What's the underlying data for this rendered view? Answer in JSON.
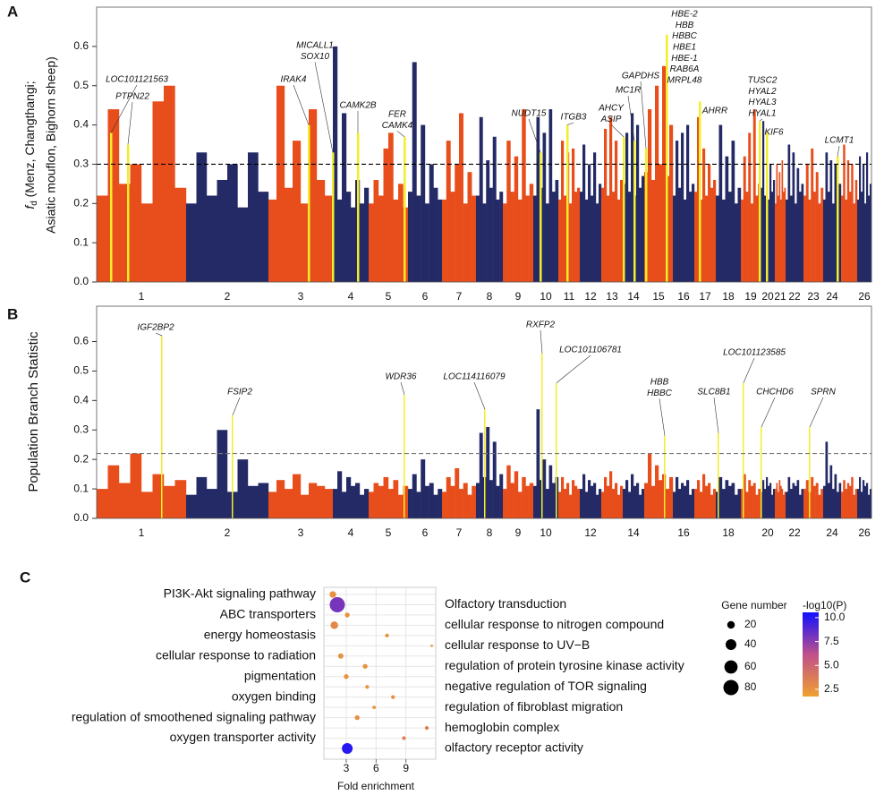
{
  "chart_data": [
    {
      "type": "manhattan",
      "panel_label": "A",
      "y_label": [
        "f",
        "d",
        " (Menz, Changthangi;",
        "Asiatic mouflon, Bighorn sheep)"
      ],
      "colors": [
        "#e84e1b",
        "#232a66"
      ],
      "highlight_color": "#f2ee2a",
      "threshold": 0.3,
      "threshold_color": "#000000",
      "ylim": [
        0,
        0.7
      ],
      "yticks": [
        {
          "value": 0,
          "label": "0.0"
        },
        0.1,
        0.2,
        0.3,
        0.4,
        0.5,
        0.6
      ],
      "chromosomes": [
        "1",
        "2",
        "3",
        "4",
        "5",
        "6",
        "7",
        "8",
        "9",
        "10",
        "11",
        "12",
        "13",
        "14",
        "15",
        "16",
        "17",
        "18",
        "19",
        "20",
        "21",
        "22",
        "23",
        "24",
        null,
        "26"
      ],
      "values": [
        [
          0.22,
          0.44,
          0.25,
          0.3,
          0.2,
          0.46,
          0.5,
          0.24
        ],
        [
          0.2,
          0.33,
          0.22,
          0.26,
          0.3,
          0.19,
          0.33,
          0.23
        ],
        [
          0.21,
          0.5,
          0.24,
          0.36,
          0.2,
          0.44,
          0.26,
          0.22
        ],
        [
          0.6,
          0.21,
          0.43,
          0.23,
          0.19,
          0.26,
          0.2,
          0.24
        ],
        [
          0.2,
          0.26,
          0.22,
          0.34,
          0.38,
          0.21,
          0.25,
          0.19
        ],
        [
          0.23,
          0.56,
          0.22,
          0.4,
          0.2,
          0.3,
          0.24,
          0.21
        ],
        [
          0.21,
          0.36,
          0.23,
          0.3,
          0.43,
          0.2,
          0.28,
          0.22
        ],
        [
          0.22,
          0.42,
          0.2,
          0.31,
          0.24,
          0.37,
          0.21,
          0.23
        ],
        [
          0.2,
          0.36,
          0.23,
          0.32,
          0.21,
          0.44,
          0.22,
          0.25
        ],
        [
          0.22,
          0.42,
          0.24,
          0.38,
          0.2,
          0.44,
          0.23,
          0.26
        ],
        [
          0.21,
          0.36,
          0.22,
          0.33,
          0.2,
          0.34,
          0.23,
          0.24
        ],
        [
          0.23,
          0.35,
          0.21,
          0.3,
          0.22,
          0.33,
          0.2,
          0.25
        ],
        [
          0.24,
          0.39,
          0.22,
          0.42,
          0.23,
          0.36,
          0.21,
          0.26
        ],
        [
          0.25,
          0.38,
          0.23,
          0.43,
          0.22,
          0.4,
          0.24,
          0.27
        ],
        [
          0.28,
          0.44,
          0.26,
          0.5,
          0.3,
          0.55,
          0.27,
          0.4
        ],
        [
          0.22,
          0.36,
          0.24,
          0.38,
          0.21,
          0.4,
          0.23,
          0.25
        ],
        [
          0.23,
          0.42,
          0.21,
          0.34,
          0.22,
          0.3,
          0.24,
          0.26
        ],
        [
          0.22,
          0.4,
          0.21,
          0.32,
          0.23,
          0.36,
          0.2,
          0.24
        ],
        [
          0.21,
          0.32,
          0.23,
          0.38,
          0.2,
          0.44,
          0.22,
          0.25
        ],
        [
          0.24,
          0.41,
          0.22,
          0.33,
          0.21,
          0.3,
          0.23,
          0.26
        ],
        [
          0.2,
          0.3,
          0.22,
          0.28,
          0.21,
          0.31,
          0.23,
          0.24
        ],
        [
          0.21,
          0.35,
          0.22,
          0.33,
          0.2,
          0.29,
          0.23,
          0.25
        ],
        [
          0.22,
          0.3,
          0.21,
          0.34,
          0.23,
          0.28,
          0.2,
          0.24
        ],
        [
          0.21,
          0.33,
          0.23,
          0.31,
          0.2,
          0.3,
          0.22,
          0.25
        ],
        [
          0.22,
          0.35,
          0.21,
          0.31,
          0.23,
          0.3,
          0.2,
          0.26
        ],
        [
          0.21,
          0.32,
          0.23,
          0.3,
          0.2,
          0.33,
          0.22,
          0.25
        ]
      ],
      "highlights": [
        {
          "label": [
            "LOC101121563"
          ],
          "value": 0.38
        },
        {
          "label": [
            "PTPN22"
          ],
          "value": 0.35
        },
        {
          "label": [
            "IRAK4"
          ],
          "value": 0.4
        },
        {
          "label": [
            "MICALL1",
            "SOX10"
          ],
          "value": 0.33
        },
        {
          "label": [
            "CAMK2B"
          ],
          "value": 0.38
        },
        {
          "label": [
            "FER",
            "CAMK4"
          ],
          "value": 0.37
        },
        {
          "label": [
            "NUDT15"
          ],
          "value": 0.33
        },
        {
          "label": [
            "ITGB3"
          ],
          "value": 0.4
        },
        {
          "label": [
            "AHCY",
            "ASIP"
          ],
          "value": 0.37
        },
        {
          "label": [
            "MC1R"
          ],
          "value": 0.36
        },
        {
          "label": [
            "GAPDHS"
          ],
          "value": 0.34
        },
        {
          "label": [
            "HBE-2",
            "HBB",
            "HBBC",
            "HBE1",
            "HBE-1",
            "RAB6A",
            "MRPL48"
          ],
          "value": 0.63
        },
        {
          "label": [
            "AHRR"
          ],
          "value": 0.46
        },
        {
          "label": [
            "TUSC2",
            "HYAL2",
            "HYAL3",
            "HYAL1"
          ],
          "value": 0.41
        },
        {
          "label": [
            "KIF6"
          ],
          "value": 0.38
        },
        {
          "label": [
            "LCMT1"
          ],
          "value": 0.32
        }
      ]
    },
    {
      "type": "manhattan",
      "panel_label": "B",
      "y_label": [
        "Population Branch Statistic"
      ],
      "colors": [
        "#e84e1b",
        "#232a66"
      ],
      "highlight_color": "#f2ee2a",
      "threshold": 0.22,
      "threshold_color": "#777777",
      "ylim": [
        0,
        0.72
      ],
      "yticks": [
        {
          "value": 0,
          "label": "0.0"
        },
        0.1,
        0.2,
        0.3,
        0.4,
        0.5,
        0.6
      ],
      "chromosomes": [
        "1",
        "2",
        "3",
        "4",
        "5",
        "6",
        "7",
        "8",
        "9",
        "10",
        null,
        "12",
        null,
        "14",
        null,
        "16",
        null,
        "18",
        null,
        "20",
        null,
        "22",
        null,
        "24",
        null,
        "26"
      ],
      "values": [
        [
          0.1,
          0.18,
          0.12,
          0.22,
          0.09,
          0.15,
          0.11,
          0.13
        ],
        [
          0.08,
          0.14,
          0.1,
          0.3,
          0.09,
          0.2,
          0.11,
          0.12
        ],
        [
          0.09,
          0.13,
          0.1,
          0.15,
          0.08,
          0.12,
          0.11,
          0.1
        ],
        [
          0.1,
          0.16,
          0.09,
          0.14,
          0.11,
          0.12,
          0.08,
          0.1
        ],
        [
          0.09,
          0.12,
          0.11,
          0.14,
          0.1,
          0.13,
          0.08,
          0.11
        ],
        [
          0.1,
          0.15,
          0.09,
          0.2,
          0.11,
          0.12,
          0.08,
          0.1
        ],
        [
          0.09,
          0.14,
          0.11,
          0.17,
          0.1,
          0.12,
          0.08,
          0.11
        ],
        [
          0.12,
          0.29,
          0.14,
          0.31,
          0.13,
          0.26,
          0.11,
          0.15
        ],
        [
          0.1,
          0.18,
          0.12,
          0.16,
          0.09,
          0.14,
          0.11,
          0.12
        ],
        [
          0.11,
          0.37,
          0.13,
          0.2,
          0.1,
          0.18,
          0.12,
          0.14
        ],
        [
          0.09,
          0.14,
          0.1,
          0.12,
          0.08,
          0.13,
          0.11,
          0.1
        ],
        [
          0.1,
          0.15,
          0.09,
          0.13,
          0.11,
          0.12,
          0.08,
          0.1
        ],
        [
          0.09,
          0.14,
          0.11,
          0.16,
          0.1,
          0.12,
          0.08,
          0.11
        ],
        [
          0.1,
          0.13,
          0.09,
          0.15,
          0.11,
          0.12,
          0.08,
          0.1
        ],
        [
          0.12,
          0.22,
          0.11,
          0.18,
          0.13,
          0.15,
          0.1,
          0.14
        ],
        [
          0.09,
          0.14,
          0.1,
          0.12,
          0.11,
          0.13,
          0.08,
          0.1
        ],
        [
          0.1,
          0.13,
          0.09,
          0.15,
          0.11,
          0.12,
          0.08,
          0.1
        ],
        [
          0.09,
          0.14,
          0.1,
          0.13,
          0.11,
          0.12,
          0.08,
          0.1
        ],
        [
          0.1,
          0.15,
          0.09,
          0.13,
          0.11,
          0.12,
          0.08,
          0.1
        ],
        [
          0.09,
          0.13,
          0.1,
          0.14,
          0.11,
          0.12,
          0.08,
          0.1
        ],
        [
          0.1,
          0.12,
          0.09,
          0.13,
          0.11,
          0.1,
          0.08,
          0.09
        ],
        [
          0.09,
          0.14,
          0.1,
          0.12,
          0.11,
          0.13,
          0.08,
          0.1
        ],
        [
          0.1,
          0.13,
          0.09,
          0.14,
          0.11,
          0.12,
          0.08,
          0.1
        ],
        [
          0.11,
          0.26,
          0.12,
          0.18,
          0.1,
          0.15,
          0.09,
          0.12
        ],
        [
          0.09,
          0.13,
          0.1,
          0.12,
          0.11,
          0.14,
          0.08,
          0.1
        ],
        [
          0.1,
          0.14,
          0.09,
          0.13,
          0.11,
          0.12,
          0.08,
          0.1
        ]
      ],
      "highlights": [
        {
          "label": [
            "IGF2BP2"
          ],
          "value": 0.62
        },
        {
          "label": [
            "FSIP2"
          ],
          "value": 0.35
        },
        {
          "label": [
            "WDR36"
          ],
          "value": 0.42
        },
        {
          "label": [
            "LOC114116079"
          ],
          "value": 0.37
        },
        {
          "label": [
            "RXFP2"
          ],
          "value": 0.56
        },
        {
          "label": [
            "LOC101106781"
          ],
          "value": 0.46
        },
        {
          "label": [
            "HBB",
            "HBBC"
          ],
          "value": 0.28
        },
        {
          "label": [
            "SLC8B1"
          ],
          "value": 0.29
        },
        {
          "label": [
            "LOC101123585"
          ],
          "value": 0.46
        },
        {
          "label": [
            "CHCHD6"
          ],
          "value": 0.31
        },
        {
          "label": [
            "SPRN"
          ],
          "value": 0.31
        }
      ]
    },
    {
      "type": "dotplot",
      "panel_label": "C",
      "x_label": "Fold enrichment",
      "xlim": [
        0.75,
        12
      ],
      "xticks": [
        3,
        6,
        9
      ],
      "colormap": [
        "#f0a030",
        "#c0508a",
        "#1010ff"
      ],
      "terms": [
        {
          "name": "PI3K-Akt signaling pathway",
          "fold": 1.65,
          "gene_number": 15,
          "neg_log10_p": 2.5
        },
        {
          "name": "Olfactory transduction",
          "fold": 2.1,
          "gene_number": 80,
          "neg_log10_p": 8
        },
        {
          "name": "ABC transporters",
          "fold": 3.1,
          "gene_number": 8,
          "neg_log10_p": 2.5
        },
        {
          "name": "cellular response to nitrogen compound",
          "fold": 1.8,
          "gene_number": 20,
          "neg_log10_p": 3
        },
        {
          "name": "energy homeostasis",
          "fold": 7.1,
          "gene_number": 5,
          "neg_log10_p": 2.5
        },
        {
          "name": "cellular response to UV−B",
          "fold": 11.6,
          "gene_number": 2,
          "neg_log10_p": 2.3
        },
        {
          "name": "cellular response to radiation",
          "fold": 2.45,
          "gene_number": 10,
          "neg_log10_p": 2.5
        },
        {
          "name": "regulation of protein tyrosine kinase activity",
          "fold": 4.9,
          "gene_number": 8,
          "neg_log10_p": 2.6
        },
        {
          "name": "pigmentation",
          "fold": 3.0,
          "gene_number": 8,
          "neg_log10_p": 2.5
        },
        {
          "name": "negative regulation of TOR signaling",
          "fold": 5.1,
          "gene_number": 5,
          "neg_log10_p": 2.4
        },
        {
          "name": "oxygen binding",
          "fold": 7.7,
          "gene_number": 5,
          "neg_log10_p": 2.8
        },
        {
          "name": "regulation of fibroblast migration",
          "fold": 5.8,
          "gene_number": 4,
          "neg_log10_p": 2.4
        },
        {
          "name": "regulation of smoothened signaling pathway",
          "fold": 4.1,
          "gene_number": 8,
          "neg_log10_p": 2.7
        },
        {
          "name": "hemoglobin complex",
          "fold": 11.1,
          "gene_number": 5,
          "neg_log10_p": 3.5
        },
        {
          "name": "oxygen transporter activity",
          "fold": 8.8,
          "gene_number": 5,
          "neg_log10_p": 3.5
        },
        {
          "name": "olfactory receptor activity",
          "fold": 3.1,
          "gene_number": 40,
          "neg_log10_p": 10
        }
      ],
      "size_legend": {
        "title": "Gene number",
        "values": [
          20,
          40,
          60,
          80
        ]
      },
      "color_legend": {
        "title": "-log10(P)",
        "clim": [
          1.75,
          10.55
        ],
        "ticks": [
          2.5,
          {
            "value": 5,
            "label": "5.0"
          },
          7.5,
          {
            "value": 10,
            "label": "10.0"
          }
        ]
      }
    }
  ]
}
